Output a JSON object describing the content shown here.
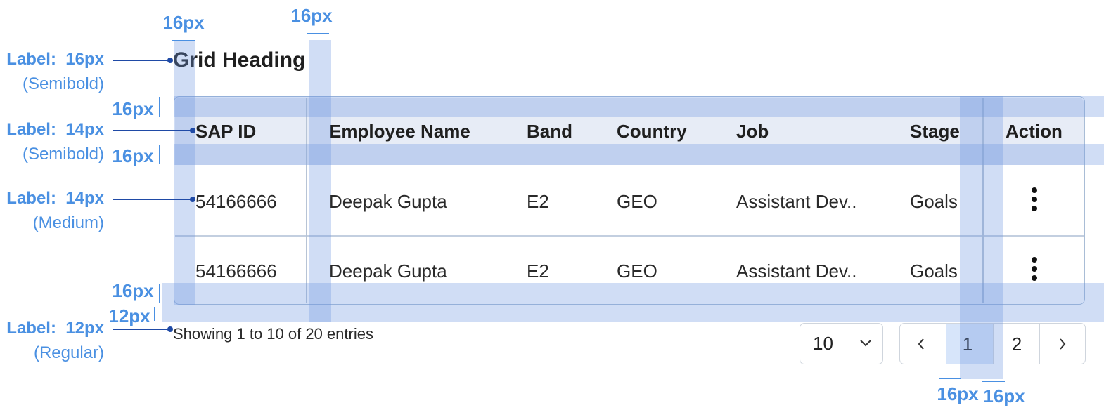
{
  "heading": "Grid Heading",
  "table": {
    "columns": [
      "SAP ID",
      "Employee Name",
      "Band",
      "Country",
      "Job",
      "Stage",
      "Action"
    ],
    "rows": [
      [
        "54166666",
        "Deepak Gupta",
        "E2",
        "GEO",
        "Assistant Dev..",
        "Goals"
      ],
      [
        "54166666",
        "Deepak Gupta",
        "E2",
        "GEO",
        "Assistant Dev..",
        "Goals"
      ]
    ]
  },
  "footer": {
    "summary": "Showing 1 to 10 of 20 entries",
    "page_size": "10",
    "pages": [
      "1",
      "2"
    ]
  },
  "annotations": {
    "type_specs": [
      {
        "label": "Label:  16px",
        "weight": "(Semibold)"
      },
      {
        "label": "Label:  14px",
        "weight": "(Semibold)"
      },
      {
        "label": "Label:  14px",
        "weight": "(Medium)"
      },
      {
        "label": "Label:  12px",
        "weight": "(Regular)"
      }
    ],
    "spacings": [
      "16px",
      "16px",
      "16px",
      "16px",
      "16px",
      "12px",
      "16px",
      "16px"
    ]
  }
}
